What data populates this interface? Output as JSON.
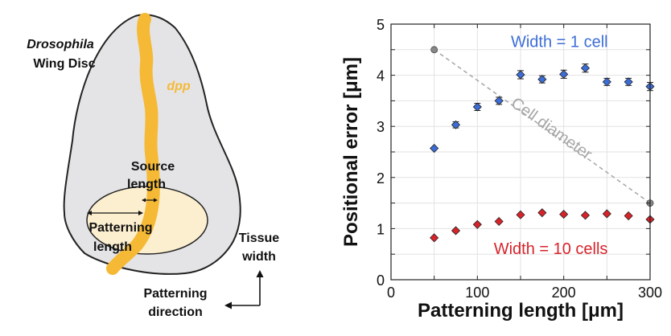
{
  "diagram": {
    "title_italic": "Drosophila",
    "title_rest": "Wing Disc",
    "dpp_label": "dpp",
    "source_label_line1": "Source",
    "source_label_line2": "length",
    "patterning_label_line1": "Patterning",
    "patterning_label_line2": "length",
    "tissue_label_line1": "Tissue",
    "tissue_label_line2": "width",
    "direction_label_line1": "Patterning",
    "direction_label_line2": "direction",
    "colors": {
      "disc_fill": "#e4e4e6",
      "disc_stroke": "#222222",
      "stripe": "#f5b935",
      "pouch_fill": "#fcefcf"
    }
  },
  "chart_data": {
    "type": "scatter",
    "xlabel": "Patterning length [μm]",
    "ylabel": "Positional error [μm]",
    "xlim": [
      0,
      300
    ],
    "ylim": [
      0,
      5
    ],
    "xticks": [
      "0",
      "100",
      "200",
      "300"
    ],
    "yticks": [
      "0",
      "1",
      "2",
      "3",
      "4",
      "5"
    ],
    "grid": true,
    "series": [
      {
        "name": "Width = 1 cell",
        "color": "#3c6dd6",
        "marker": "diamond",
        "x": [
          50,
          75,
          100,
          125,
          150,
          175,
          200,
          225,
          250,
          275,
          300
        ],
        "y": [
          2.57,
          3.03,
          3.38,
          3.5,
          4.01,
          3.92,
          4.02,
          4.14,
          3.87,
          3.87,
          3.78
        ],
        "err": [
          0,
          0.06,
          0.07,
          0.07,
          0.08,
          0.07,
          0.08,
          0.08,
          0.07,
          0.07,
          0.08
        ]
      },
      {
        "name": "Width = 10 cells",
        "color": "#d8232a",
        "marker": "diamond",
        "x": [
          50,
          75,
          100,
          125,
          150,
          175,
          200,
          225,
          250,
          275,
          300
        ],
        "y": [
          0.82,
          0.96,
          1.08,
          1.14,
          1.27,
          1.31,
          1.28,
          1.26,
          1.29,
          1.25,
          1.18
        ],
        "err": [
          0,
          0,
          0,
          0,
          0,
          0,
          0,
          0,
          0,
          0,
          0
        ]
      }
    ],
    "reference_line": {
      "name": "Cell diameter",
      "color": "#a6a6a6",
      "x": [
        50,
        300
      ],
      "y": [
        4.5,
        1.5
      ]
    }
  }
}
